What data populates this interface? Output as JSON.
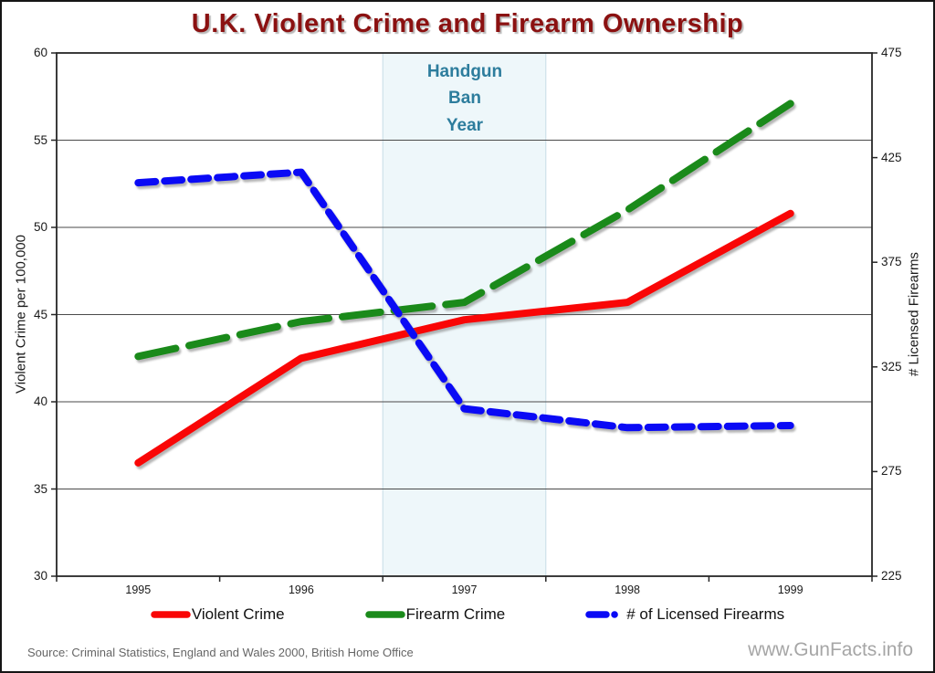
{
  "title": "U.K. Violent Crime and Firearm Ownership",
  "chart_data": {
    "type": "line",
    "x": [
      "1995",
      "1996",
      "1997",
      "1998",
      "1999"
    ],
    "series": [
      {
        "name": "Violent Crime",
        "axis": "left",
        "color": "#f90606",
        "dash": "solid",
        "values": [
          36.5,
          42.5,
          44.7,
          45.7,
          50.8
        ]
      },
      {
        "name": "Firearm Crime",
        "axis": "left",
        "color": "#1a8a1a",
        "dash": "long-dash",
        "values": [
          42.6,
          44.6,
          45.7,
          51.0,
          57.1
        ]
      },
      {
        "name": "# of Licensed Firearms",
        "axis": "right",
        "color": "#0a0af5",
        "dash": "dash",
        "values": [
          413,
          418,
          305,
          296,
          297
        ]
      }
    ],
    "left_axis": {
      "label": "Violent Crime per 100,000",
      "min": 30,
      "max": 60,
      "ticks": [
        60,
        55,
        50,
        45,
        40,
        35,
        30
      ]
    },
    "right_axis": {
      "label": "# Licensed Firearms",
      "min": 225,
      "max": 475,
      "ticks": [
        475,
        425,
        375,
        325,
        275,
        225
      ]
    },
    "grid": "horizontal-only",
    "legend_position": "bottom",
    "highlight_band": {
      "category": "1997",
      "category_index": 2,
      "label": [
        "Handgun",
        "Ban",
        "Year"
      ],
      "fill": "#eef7fa",
      "border": "#c5dde6",
      "label_color": "#2d7d9d"
    }
  },
  "legend": {
    "items": [
      {
        "label": "Violent Crime"
      },
      {
        "label": "Firearm Crime"
      },
      {
        "label": "# of Licensed Firearms"
      }
    ]
  },
  "footer": {
    "source": "Source: Criminal Statistics, England and Wales 2000, British Home Office",
    "watermark": "www.GunFacts.info"
  },
  "colors": {
    "title": "#8b1111",
    "gridline": "#4a4a4a",
    "axis_border": "#262626",
    "source": "#666666",
    "watermark": "#a6a6a6"
  }
}
